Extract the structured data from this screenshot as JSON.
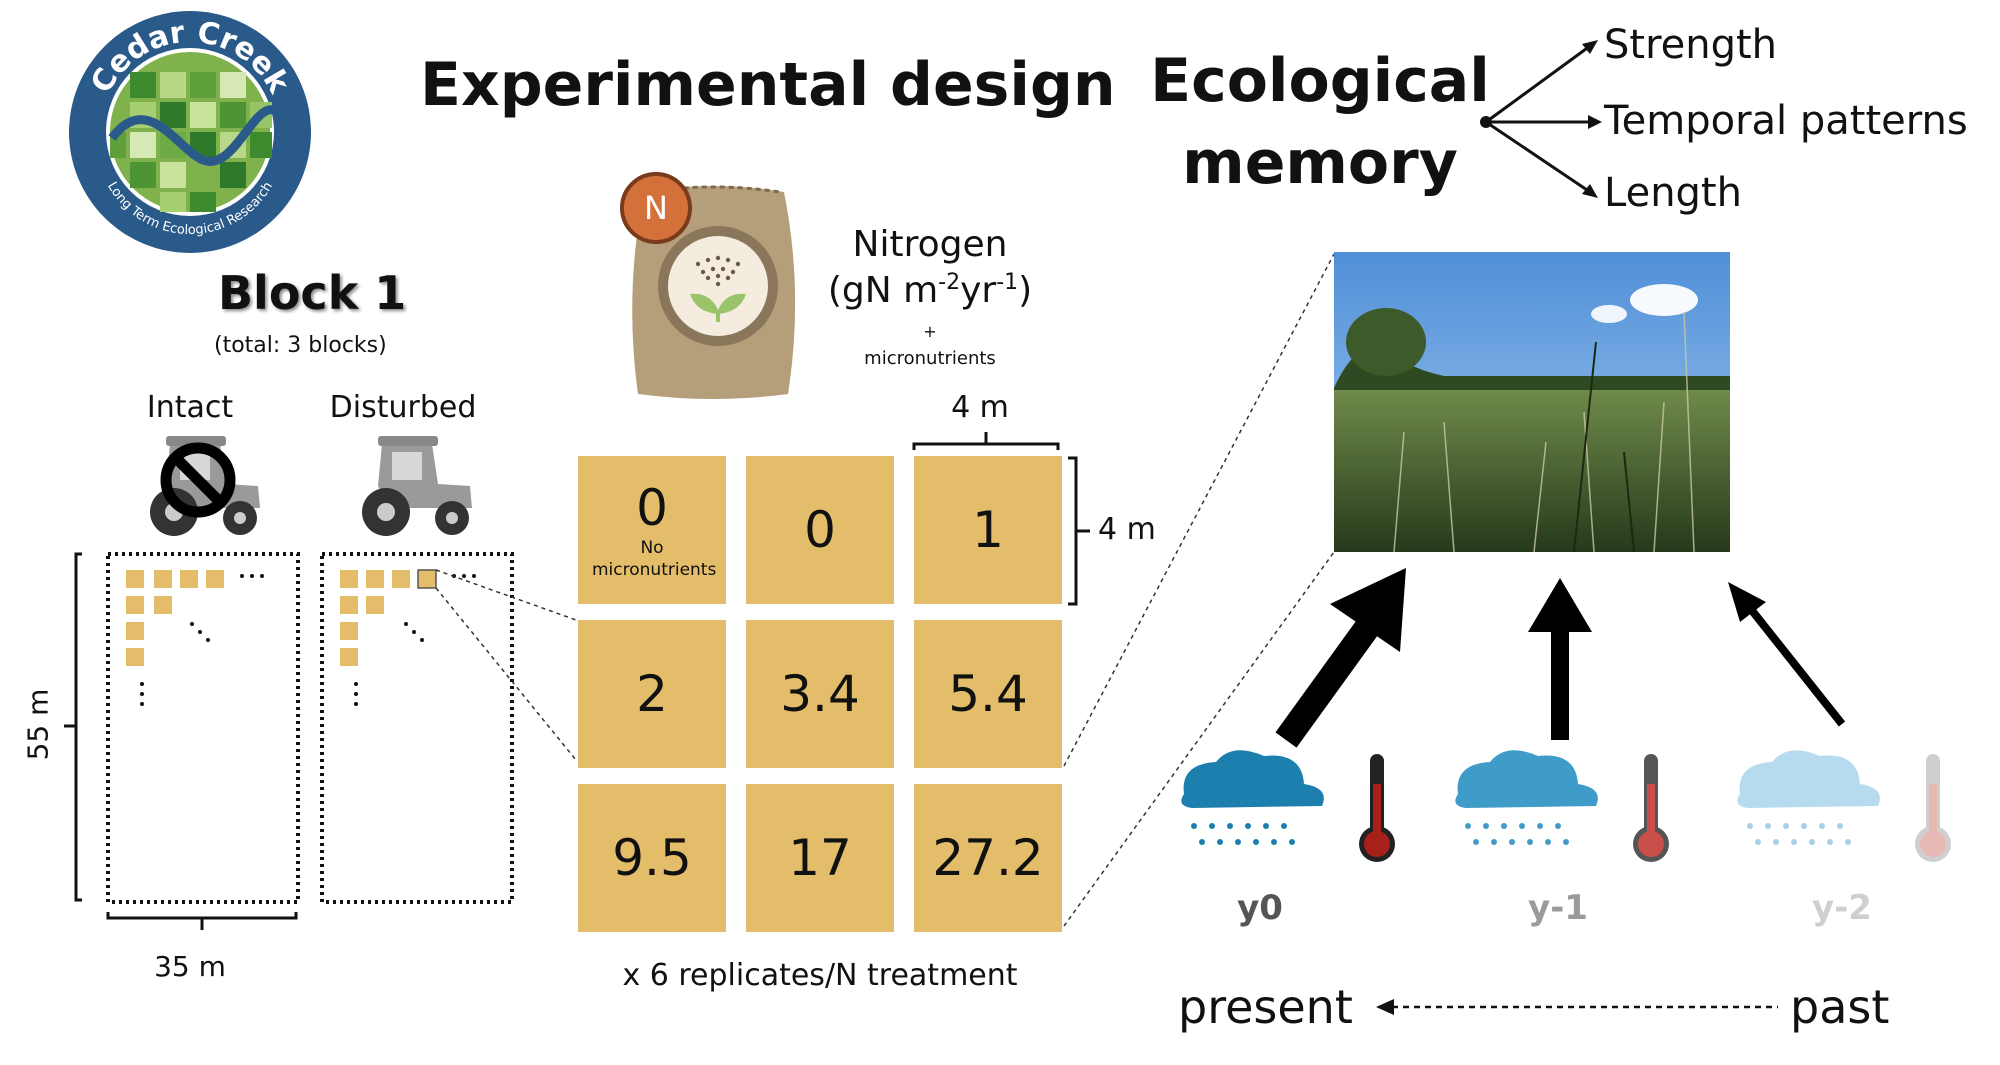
{
  "logo": {
    "top_text": "Cedar Creek",
    "bottom_text": "Long Term Ecological Research"
  },
  "left": {
    "block_title": "Block 1",
    "block_note": "(total: 3 blocks)",
    "intact_label": "Intact",
    "disturbed_label": "Disturbed",
    "height_label": "55 m",
    "width_label": "35 m",
    "dots": "..."
  },
  "middle": {
    "title": "Experimental design",
    "bag_badge": "N",
    "nitrogen_title": "Nitrogen",
    "nitrogen_unit_prefix": "(gN m",
    "nitrogen_unit_sup1": "-2",
    "nitrogen_unit_mid": "yr",
    "nitrogen_unit_sup2": "-1",
    "nitrogen_unit_suffix": ")",
    "plus": "+",
    "micronutrients": "micronutrients",
    "plot_width_label": "4 m",
    "plot_height_label": "4 m",
    "cells": [
      {
        "value": "0",
        "sub": "No micronutrients"
      },
      {
        "value": "0"
      },
      {
        "value": "1"
      },
      {
        "value": "2"
      },
      {
        "value": "3.4"
      },
      {
        "value": "5.4"
      },
      {
        "value": "9.5"
      },
      {
        "value": "17"
      },
      {
        "value": "27.2"
      }
    ],
    "replicates": "x 6 replicates/N treatment"
  },
  "right": {
    "title_line1": "Ecological",
    "title_line2": "memory",
    "branches": [
      "Strength",
      "Temporal patterns",
      "Length"
    ],
    "years": [
      "y0",
      "y-1",
      "y-2"
    ],
    "present": "present",
    "past": "past"
  },
  "colors": {
    "plot": "#e4bd6a",
    "logo_ring": "#2a5a8a",
    "badge": "#d4703a",
    "bag": "#b59e7a",
    "cloud": "#1d7fae",
    "thermo_red": "#a8201a"
  }
}
